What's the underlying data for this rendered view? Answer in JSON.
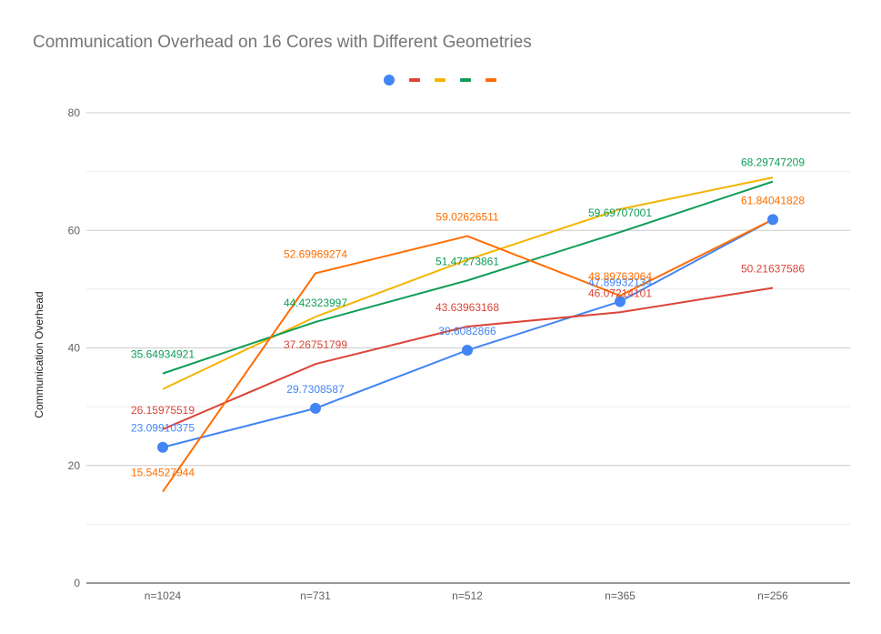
{
  "chart_data": {
    "type": "line",
    "title": "Communication Overhead on 16 Cores with Different Geometries",
    "ylabel": "Communication Overhead",
    "xlabel": "",
    "categories": [
      "n=1024",
      "n=731",
      "n=512",
      "n=365",
      "n=256"
    ],
    "ylim": [
      0,
      80
    ],
    "yticks": [
      0,
      20,
      40,
      60,
      80
    ],
    "grid": true,
    "legend_position": "top",
    "series": [
      {
        "color": "#4285F4",
        "marker": "circle",
        "values": [
          23.09910375,
          29.7308587,
          39.6082866,
          47.89932134,
          61.84041828
        ],
        "labels": [
          "23.09910375",
          "29.7308587",
          "39.6082866",
          "47.89932134",
          ""
        ]
      },
      {
        "color": "#DB4437",
        "marker": "none",
        "values": [
          26.15975519,
          37.26751799,
          43.63963168,
          46.07214101,
          50.21637586
        ],
        "labels": [
          "26.15975519",
          "37.26751799",
          "43.63963168",
          "46.07214101",
          "50.21637586"
        ]
      },
      {
        "color": "#F4B400",
        "marker": "none",
        "values": [
          33.0,
          45.3,
          55.0,
          63.6,
          69.0
        ],
        "labels": [
          "",
          "",
          "",
          "",
          ""
        ]
      },
      {
        "color": "#0F9D58",
        "marker": "none",
        "values": [
          35.64934921,
          44.42323997,
          51.47273861,
          59.69707001,
          68.29747209
        ],
        "labels": [
          "35.64934921",
          "44.42323997",
          "51.47273861",
          "59.69707001",
          "68.29747209"
        ]
      },
      {
        "color": "#FF6D00",
        "marker": "none",
        "values": [
          15.54527944,
          52.69969274,
          59.02626511,
          48.89763064,
          61.84041828
        ],
        "labels": [
          "15.54527944",
          "52.69969274",
          "59.02626511",
          "48.89763064",
          "61.84041828"
        ]
      }
    ]
  }
}
